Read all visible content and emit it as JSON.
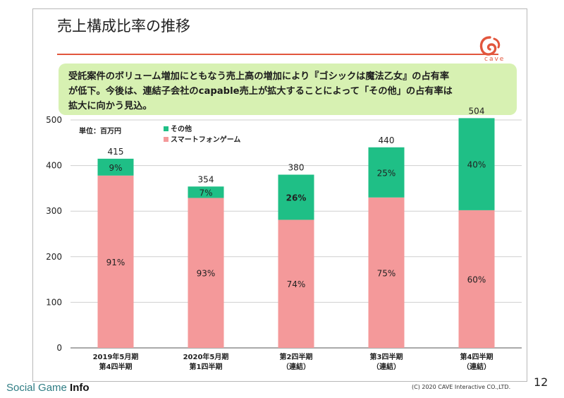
{
  "slide": {
    "title": "売上構成比率の推移",
    "logo_text": "cave",
    "callout_lines": [
      "受託案件のボリューム増加にともなう売上高の増加により『ゴシックは魔法乙女』の占有率",
      "が低下。今後は、連結子会社のcapable売上が拡大することによって「その他」の占有率は",
      "拡大に向かう見込。"
    ],
    "copyright": "(C) 2020 CAVE Interactive CO.,LTD.",
    "page_number": "12"
  },
  "footer": {
    "brand_plain": "Social Game ",
    "brand_bold": "Info"
  },
  "colors": {
    "smartphone": "#f4999a",
    "other": "#1fbf86",
    "accent": "#e2563d",
    "callout_bg": "#d7f1b2"
  },
  "chart_data": {
    "type": "bar",
    "stacked": true,
    "unit_label": "単位：百万円",
    "categories": [
      [
        "2019年5月期",
        "第4四半期"
      ],
      [
        "2020年5月期",
        "第1四半期"
      ],
      [
        "第2四半期",
        "（連結）"
      ],
      [
        "第3四半期",
        "（連結）"
      ],
      [
        "第4四半期",
        "（連結）"
      ]
    ],
    "totals": [
      415,
      354,
      380,
      440,
      504
    ],
    "series": [
      {
        "name": "スマートフォンゲーム",
        "color": "#f4999a",
        "values": [
          378,
          329,
          281,
          330,
          302
        ],
        "labels": [
          "91%",
          "93%",
          "74%",
          "75%",
          "60%"
        ]
      },
      {
        "name": "その他",
        "color": "#1fbf86",
        "values": [
          37,
          25,
          99,
          110,
          202
        ],
        "labels": [
          "9%",
          "7%",
          "26%",
          "25%",
          "40%"
        ]
      }
    ],
    "legend": [
      "その他",
      "スマートフォンゲーム"
    ],
    "legend_position": "top-left",
    "ylim": [
      0,
      500
    ],
    "yticks": [
      0,
      100,
      200,
      300,
      400,
      500
    ],
    "grid": true
  }
}
